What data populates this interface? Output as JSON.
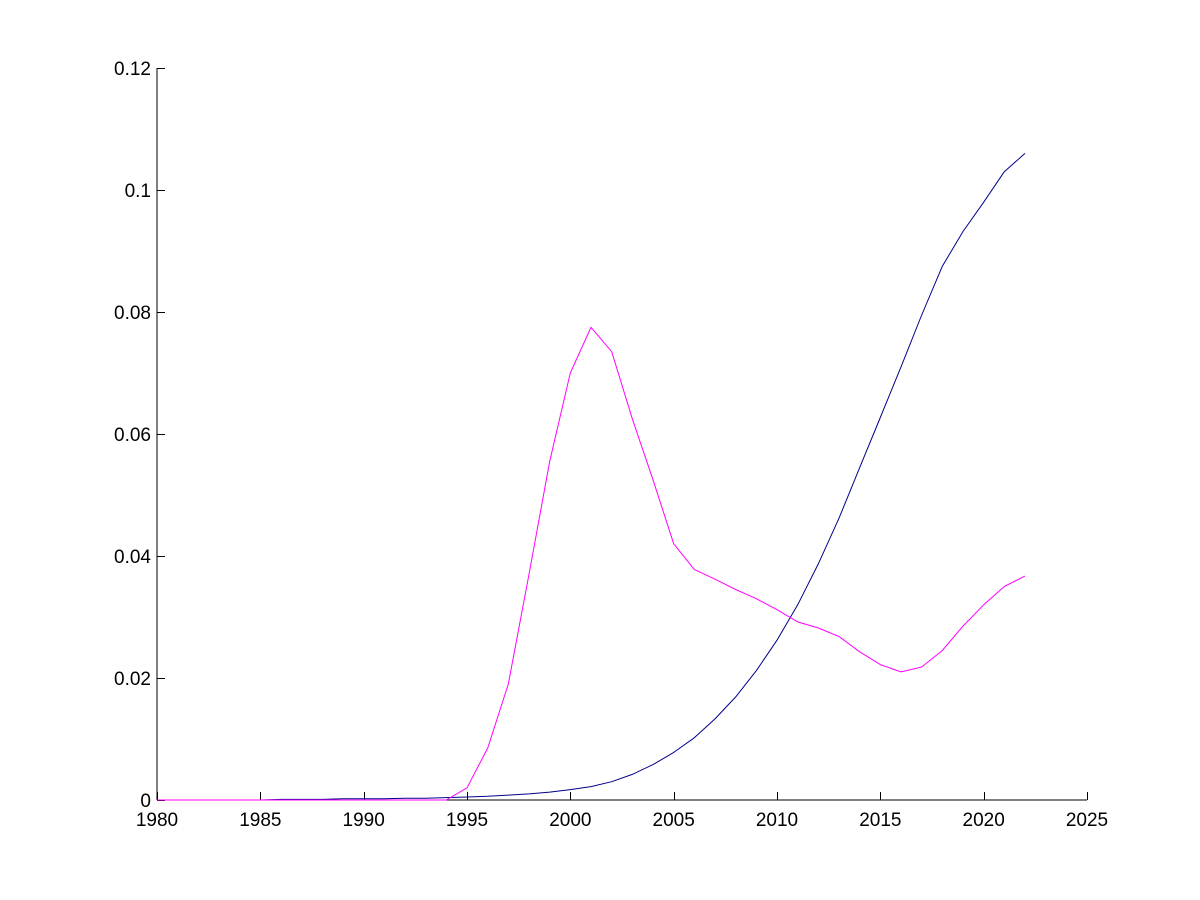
{
  "chart_data": {
    "type": "line",
    "title": "",
    "xlabel": "",
    "ylabel": "",
    "xlim": [
      1980,
      2025
    ],
    "ylim": [
      0,
      0.12
    ],
    "xticks": [
      1980,
      1985,
      1990,
      1995,
      2000,
      2005,
      2010,
      2015,
      2020,
      2025
    ],
    "xtick_labels": [
      "1980",
      "1985",
      "1990",
      "1995",
      "2000",
      "2005",
      "2010",
      "2015",
      "2020",
      "2025"
    ],
    "yticks": [
      0,
      0.02,
      0.04,
      0.06,
      0.08,
      0.1,
      0.12
    ],
    "ytick_labels": [
      "0",
      "0.02",
      "0.04",
      "0.06",
      "0.08",
      "0.1",
      "0.12"
    ],
    "grid": false,
    "legend": "none",
    "x": [
      1980,
      1981,
      1982,
      1983,
      1984,
      1985,
      1986,
      1987,
      1988,
      1989,
      1990,
      1991,
      1992,
      1993,
      1994,
      1995,
      1996,
      1997,
      1998,
      1999,
      2000,
      2001,
      2002,
      2003,
      2004,
      2005,
      2006,
      2007,
      2008,
      2009,
      2010,
      2011,
      2012,
      2013,
      2014,
      2015,
      2016,
      2017,
      2018,
      2019,
      2020,
      2021,
      2022
    ],
    "series": [
      {
        "color": "#00008b",
        "values": [
          0,
          0,
          0,
          0,
          0,
          0,
          0.0001,
          0.0001,
          0.0001,
          0.0002,
          0.0002,
          0.0002,
          0.0003,
          0.0003,
          0.0004,
          0.0005,
          0.0006,
          0.0008,
          0.001,
          0.0013,
          0.0017,
          0.0022,
          0.003,
          0.0042,
          0.0058,
          0.0078,
          0.0102,
          0.0133,
          0.0169,
          0.0212,
          0.0262,
          0.032,
          0.0387,
          0.0462,
          0.0545,
          0.0627,
          0.071,
          0.0795,
          0.0875,
          0.0932,
          0.098,
          0.103,
          0.106
        ]
      },
      {
        "color": "#ff00ff",
        "values": [
          0,
          0,
          0,
          0,
          0,
          0,
          0,
          0,
          0,
          0,
          0,
          0,
          0,
          0,
          0,
          0.002,
          0.0085,
          0.019,
          0.037,
          0.0555,
          0.07,
          0.0775,
          0.0735,
          0.0625,
          0.0525,
          0.042,
          0.0378,
          0.0362,
          0.0345,
          0.033,
          0.0312,
          0.0292,
          0.0282,
          0.0268,
          0.0243,
          0.0222,
          0.021,
          0.0218,
          0.0245,
          0.0285,
          0.032,
          0.035,
          0.0367
        ]
      }
    ]
  }
}
